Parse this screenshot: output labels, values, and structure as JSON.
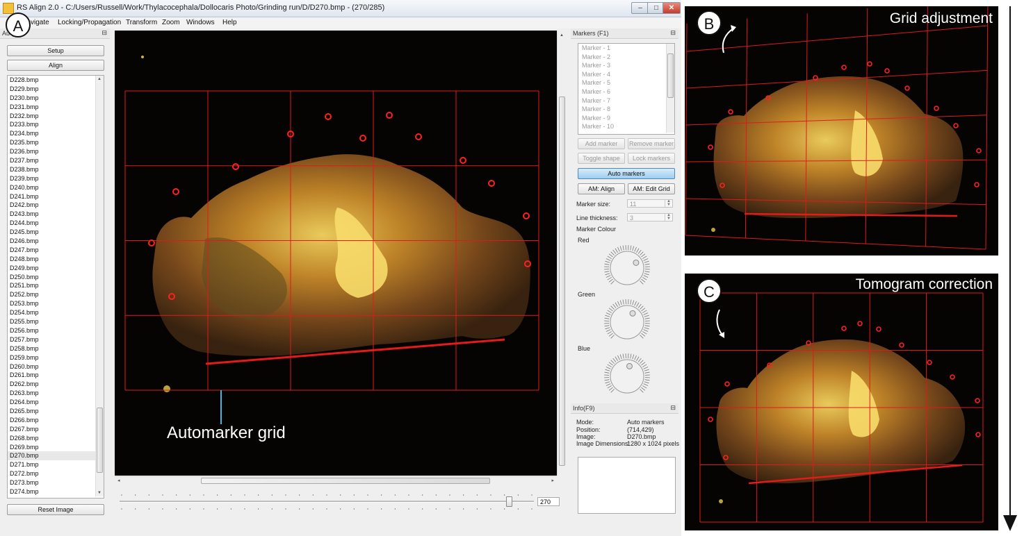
{
  "window": {
    "title": "RS Align 2.0 - C:/Users/Russell/Work/Thylacocephala/Dollocaris Photo/Grinding run/D/D270.bmp - (270/285)",
    "buttons": {
      "minimize": "–",
      "maximize": "□",
      "close": "✕"
    }
  },
  "menu": [
    "vigate",
    "Locking/Propagation",
    "Transform",
    "Zoom",
    "Windows",
    "Help"
  ],
  "left_panel": {
    "title": "Au     (F3)",
    "pin_icon": "pin-icon",
    "setup_label": "Setup",
    "align_label": "Align",
    "files": [
      "D228.bmp",
      "D229.bmp",
      "D230.bmp",
      "D231.bmp",
      "D232.bmp",
      "D233.bmp",
      "D234.bmp",
      "D235.bmp",
      "D236.bmp",
      "D237.bmp",
      "D238.bmp",
      "D239.bmp",
      "D240.bmp",
      "D241.bmp",
      "D242.bmp",
      "D243.bmp",
      "D244.bmp",
      "D245.bmp",
      "D246.bmp",
      "D247.bmp",
      "D248.bmp",
      "D249.bmp",
      "D250.bmp",
      "D251.bmp",
      "D252.bmp",
      "D253.bmp",
      "D254.bmp",
      "D255.bmp",
      "D256.bmp",
      "D257.bmp",
      "D258.bmp",
      "D259.bmp",
      "D260.bmp",
      "D261.bmp",
      "D262.bmp",
      "D263.bmp",
      "D264.bmp",
      "D265.bmp",
      "D266.bmp",
      "D267.bmp",
      "D268.bmp",
      "D269.bmp",
      "D270.bmp",
      "D271.bmp",
      "D272.bmp",
      "D273.bmp",
      "D274.bmp"
    ],
    "selected_file": "D270.bmp",
    "reset_label": "Reset Image"
  },
  "viewer": {
    "annotation": "Automarker grid",
    "slider_value": "270",
    "slider_fraction": 0.947
  },
  "markers_panel": {
    "title": "Markers (F1)",
    "markers": [
      "Marker - 1",
      "Marker - 2",
      "Marker - 3",
      "Marker - 4",
      "Marker - 5",
      "Marker - 6",
      "Marker - 7",
      "Marker - 8",
      "Marker - 9",
      "Marker - 10"
    ],
    "add_marker": "Add marker",
    "remove_marker": "Remove marker",
    "toggle_shape": "Toggle shape",
    "lock_markers": "Lock markers",
    "auto_markers": "Auto markers",
    "am_align": "AM: Align",
    "am_edit_grid": "AM: Edit Grid",
    "marker_size_label": "Marker size:",
    "marker_size_value": "11",
    "line_thickness_label": "Line thickness:",
    "line_thickness_value": "3",
    "marker_colour_label": "Marker Colour",
    "red_label": "Red",
    "green_label": "Green",
    "blue_label": "Blue"
  },
  "info_panel": {
    "title": "Info(F9)",
    "mode_label": "Mode:",
    "mode_value": "Auto markers",
    "position_label": "Position:",
    "position_value": "(714,429)",
    "image_label": "Image:",
    "image_value": "D270.bmp",
    "dims_label": "Image Dimensions:",
    "dims_value": "1280 x 1024 pixels"
  },
  "figure": {
    "label_a": "A",
    "label_b": "B",
    "label_c": "C",
    "title_b": "Grid adjustment",
    "title_c": "Tomogram correction"
  },
  "colors": {
    "grid": "#e01a1a",
    "marker": "#ff2020",
    "annotation_line": "#3fb7e6"
  }
}
